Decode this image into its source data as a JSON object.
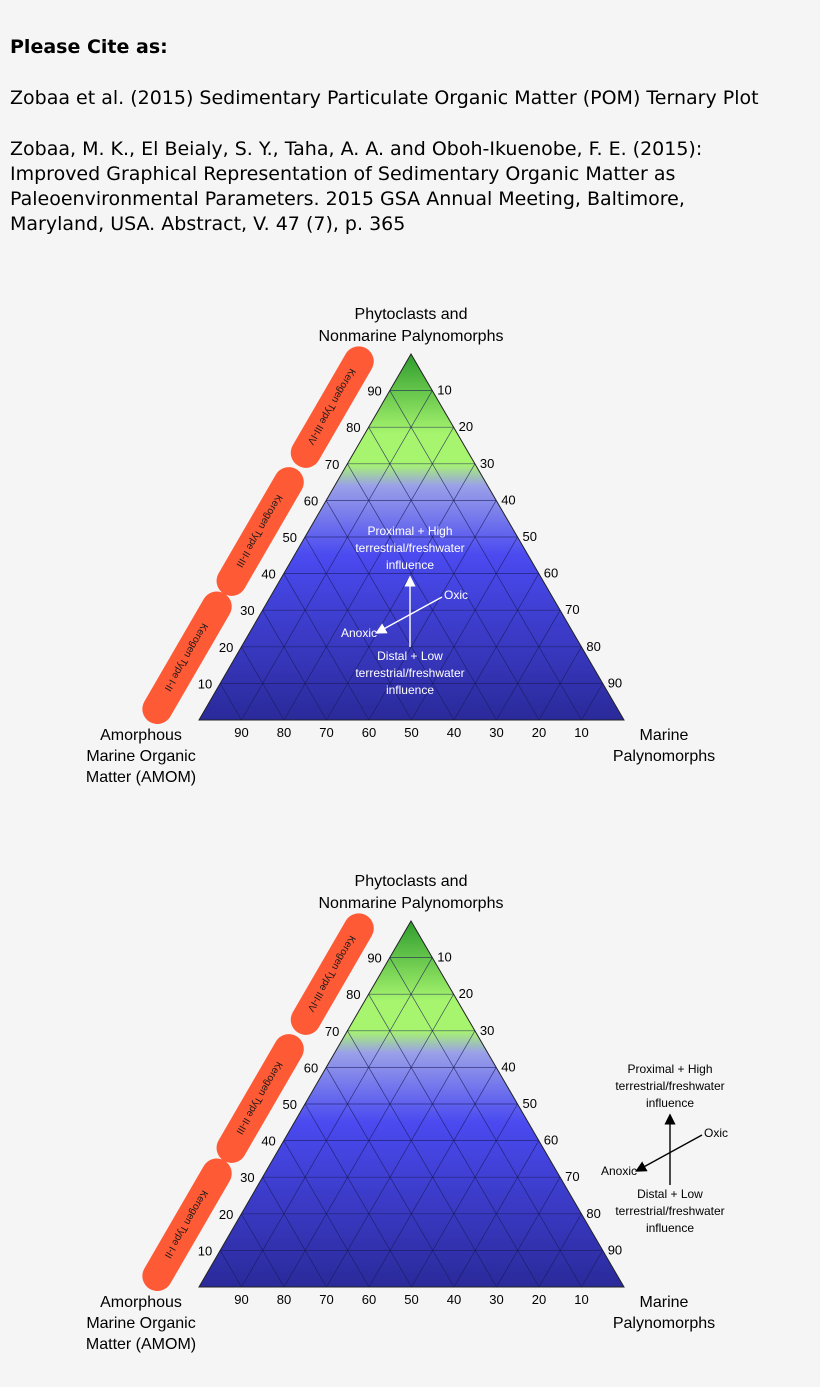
{
  "citation": {
    "heading": "Please Cite as:",
    "short_ref": "Zobaa et al. (2015) Sedimentary Particulate Organic Matter (POM) Ternary Plot",
    "full_ref_lines": [
      "Zobaa, M. K., El Beialy, S. Y., Taha, A. A. and Oboh-Ikuenobe, F. E. (2015):",
      "Improved Graphical Representation of Sedimentary Organic Matter as",
      "Paleoenvironmental Parameters. 2015 GSA Annual Meeting, Baltimore,",
      "Maryland, USA. Abstract, V. 47 (7), p. 365"
    ]
  },
  "plot": {
    "apex_labels": {
      "top": [
        "Phytoclasts and",
        "Nonmarine Palynomorphs"
      ],
      "left": [
        "Amorphous",
        "Marine Organic",
        "Matter (AMOM)"
      ],
      "right": [
        "Marine",
        "Palynomorphs"
      ]
    },
    "left_ticks": [
      "90",
      "80",
      "70",
      "60",
      "50",
      "40",
      "30",
      "20",
      "10"
    ],
    "right_ticks": [
      "10",
      "20",
      "30",
      "40",
      "50",
      "60",
      "70",
      "80",
      "90"
    ],
    "bottom_ticks": [
      "90",
      "80",
      "70",
      "60",
      "50",
      "40",
      "30",
      "20",
      "10"
    ],
    "kerogen_types": [
      "Kerogen Type III-IV",
      "Kerogen Type II-III",
      "Kerogen Type I-II"
    ],
    "annotation": {
      "proximal": [
        "Proximal + High",
        "terrestrial/freshwater",
        "influence"
      ],
      "distal": [
        "Distal + Low",
        "terrestrial/freshwater",
        "influence"
      ],
      "oxic": "Oxic",
      "anoxic": "Anoxic"
    }
  },
  "colors": {
    "triangle_top": "#2e9c2e",
    "triangle_green": "#a7f56e",
    "triangle_band": "#9aa0e8",
    "triangle_mid": "#4a4af0",
    "triangle_bottom": "#2a2a9a",
    "kerogen_pill": "#ff5a36",
    "grid_line": "#1a1a5a"
  }
}
